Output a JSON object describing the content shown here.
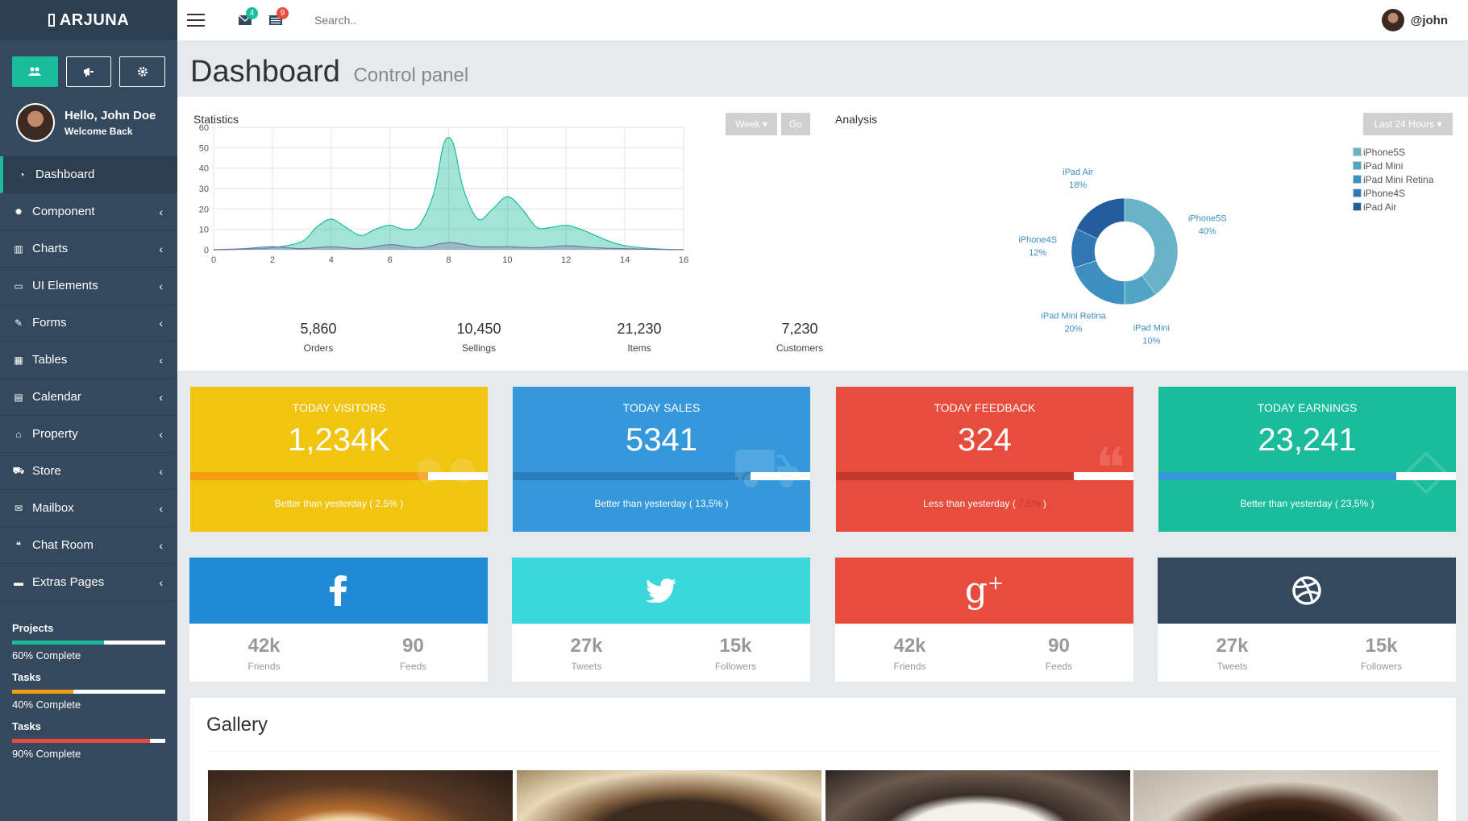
{
  "brand": "ARJUNA",
  "sidebar": {
    "buttons": [
      {
        "icon": "users-icon"
      },
      {
        "icon": "bullhorn-icon"
      },
      {
        "icon": "gear-icon"
      }
    ],
    "hello": "Hello, John Doe",
    "welcome": "Welcome Back",
    "menu": [
      {
        "label": "Dashboard",
        "icon": "dashboard-icon"
      },
      {
        "label": "Component",
        "icon": "cog-icon"
      },
      {
        "label": "Charts",
        "icon": "bar-chart-icon"
      },
      {
        "label": "UI Elements",
        "icon": "laptop-icon"
      },
      {
        "label": "Forms",
        "icon": "edit-icon"
      },
      {
        "label": "Tables",
        "icon": "table-icon"
      },
      {
        "label": "Calendar",
        "icon": "calendar-icon"
      },
      {
        "label": "Property",
        "icon": "home-icon"
      },
      {
        "label": "Store",
        "icon": "cart-icon"
      },
      {
        "label": "Mailbox",
        "icon": "envelope-icon"
      },
      {
        "label": "Chat Room",
        "icon": "comments-icon"
      },
      {
        "label": "Extras Pages",
        "icon": "folder-icon"
      }
    ],
    "progress": [
      {
        "title": "Projects",
        "text": "60% Complete",
        "pct": 60,
        "color": "#1abc9c"
      },
      {
        "title": "Tasks",
        "text": "40% Complete",
        "pct": 40,
        "color": "#f39c12"
      },
      {
        "title": "Tasks",
        "text": "90% Complete",
        "pct": 90,
        "color": "#e74c3c"
      }
    ]
  },
  "topbar": {
    "mail_badge": "4",
    "tasks_badge": "9",
    "search_placeholder": "Search..",
    "username": "@john"
  },
  "page": {
    "title": "Dashboard",
    "subtitle": "Control panel"
  },
  "statistics": {
    "label": "Statistics",
    "week_btn": "Week ▾",
    "go_btn": "Go",
    "summary": [
      {
        "value": "5,860",
        "label": "Orders"
      },
      {
        "value": "10,450",
        "label": "Sellings"
      },
      {
        "value": "21,230",
        "label": "Items"
      },
      {
        "value": "7,230",
        "label": "Customers"
      }
    ]
  },
  "analysis": {
    "label": "Analysis",
    "range_btn": "Last 24 Hours ▾"
  },
  "chart_data": [
    {
      "type": "area",
      "title": "",
      "xlabel": "",
      "ylabel": "",
      "xlim": [
        0,
        16
      ],
      "ylim": [
        0,
        60
      ],
      "xticks": [
        0,
        2,
        4,
        6,
        8,
        10,
        12,
        14,
        16
      ],
      "yticks": [
        0,
        10,
        20,
        30,
        40,
        50,
        60
      ],
      "grid": true,
      "series": [
        {
          "color": "#1abc9c",
          "x": [
            0,
            1,
            2,
            3,
            3.5,
            4,
            4.5,
            5,
            5.5,
            6,
            6.5,
            7,
            7.5,
            7.8,
            8,
            8.2,
            8.5,
            9,
            9.5,
            10,
            10.5,
            11,
            11.5,
            12,
            12.5,
            13,
            13.5,
            14,
            15,
            16
          ],
          "y": [
            0,
            0.3,
            1,
            4,
            11,
            15,
            11,
            7,
            10,
            12,
            10,
            12,
            28,
            50,
            55,
            50,
            30,
            15,
            20,
            26,
            20,
            11,
            11,
            12,
            10,
            7,
            4,
            2,
            0.5,
            0
          ]
        },
        {
          "color": "#7e6fa8",
          "x": [
            0,
            1,
            2,
            3,
            4,
            5,
            6,
            7,
            8,
            9,
            10,
            11,
            12,
            13,
            14,
            15,
            16
          ],
          "y": [
            0,
            0.5,
            1.5,
            0.5,
            1.5,
            0.5,
            2.5,
            1,
            3.5,
            1.5,
            1.5,
            1,
            2,
            1,
            0.5,
            0.2,
            0
          ]
        }
      ]
    },
    {
      "type": "pie",
      "title": "",
      "legend": "right",
      "series": [
        {
          "name": "iPhone5S",
          "value": 40,
          "label": "40%",
          "color": "#68b3c8"
        },
        {
          "name": "iPad Mini",
          "value": 10,
          "label": "10%",
          "color": "#4fa6c4"
        },
        {
          "name": "iPad Mini Retina",
          "value": 20,
          "label": "20%",
          "color": "#3d8fc0"
        },
        {
          "name": "iPhone4S",
          "value": 12,
          "label": "12%",
          "color": "#2f78b4"
        },
        {
          "name": "iPad Air",
          "value": 18,
          "label": "18%",
          "color": "#245d9d"
        }
      ]
    }
  ],
  "tiles": [
    {
      "label": "TODAY VISITORS",
      "value": "1,234K",
      "sub": "Better than yesterday ( 2,5% )",
      "color": "#f1c40f",
      "bar": "#f39c12",
      "pct": 80,
      "icon": "users-icon"
    },
    {
      "label": "TODAY SALES",
      "value": "5341",
      "sub": "Better than yesterday ( 13,5% )",
      "color": "#3498db",
      "bar": "#2980b9",
      "pct": 80,
      "icon": "cart-icon"
    },
    {
      "label": "TODAY FEEDBACK",
      "value": "324",
      "sub_prefix": "Less than yesterday ( ",
      "sub_hidden": "7,5%",
      "sub_suffix": " )",
      "color": "#e74c3c",
      "bar": "#c0392b",
      "pct": 80,
      "icon": "comments-icon"
    },
    {
      "label": "TODAY EARNINGS",
      "value": "23,241",
      "sub": "Better than yesterday ( 23,5% )",
      "color": "#1abc9c",
      "bar": "#3498db",
      "pct": 80,
      "icon": "money-icon"
    }
  ],
  "social": [
    {
      "network": "facebook",
      "color": "#1f8bd6",
      "a_num": "42k",
      "a_lbl": "Friends",
      "b_num": "90",
      "b_lbl": "Feeds"
    },
    {
      "network": "twitter",
      "color": "#3bd8db",
      "a_num": "27k",
      "a_lbl": "Tweets",
      "b_num": "15k",
      "b_lbl": "Followers"
    },
    {
      "network": "google-plus",
      "color": "#e74c3c",
      "a_num": "42k",
      "a_lbl": "Friends",
      "b_num": "90",
      "b_lbl": "Feeds"
    },
    {
      "network": "dribbble",
      "color": "#34495e",
      "a_num": "27k",
      "a_lbl": "Tweets",
      "b_num": "15k",
      "b_lbl": "Followers"
    }
  ],
  "gallery": {
    "title": "Gallery"
  }
}
